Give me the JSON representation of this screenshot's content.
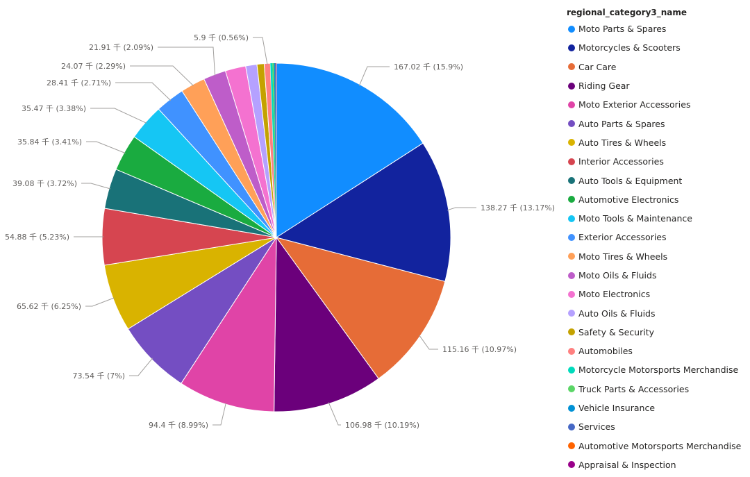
{
  "chart_data": {
    "type": "pie",
    "legend_title": "regional_category3_name",
    "legend_placement": "right",
    "slices": [
      {
        "name": "Moto Parts & Spares",
        "value": 167.02,
        "percent": 15.9,
        "label": "167.02 千 (15.9%)",
        "color": "#118DFF"
      },
      {
        "name": "Motorcycles & Scooters",
        "value": 138.27,
        "percent": 13.17,
        "label": "138.27 千 (13.17%)",
        "color": "#12239E"
      },
      {
        "name": "Car Care",
        "value": 115.16,
        "percent": 10.97,
        "label": "115.16 千 (10.97%)",
        "color": "#E66C37"
      },
      {
        "name": "Riding Gear",
        "value": 106.98,
        "percent": 10.19,
        "label": "106.98 千 (10.19%)",
        "color": "#6B007B"
      },
      {
        "name": "Moto Exterior Accessories",
        "value": 94.4,
        "percent": 8.99,
        "label": "94.4 千 (8.99%)",
        "color": "#E044A7"
      },
      {
        "name": "Auto Parts & Spares",
        "value": 73.54,
        "percent": 7,
        "label": "73.54 千 (7%)",
        "color": "#744EC2"
      },
      {
        "name": "Auto Tires & Wheels",
        "value": 65.62,
        "percent": 6.25,
        "label": "65.62 千 (6.25%)",
        "color": "#D9B300"
      },
      {
        "name": "Interior Accessories",
        "value": 54.88,
        "percent": 5.23,
        "label": "54.88 千 (5.23%)",
        "color": "#D64550"
      },
      {
        "name": "Auto Tools & Equipment",
        "value": 39.08,
        "percent": 3.72,
        "label": "39.08 千 (3.72%)",
        "color": "#197278"
      },
      {
        "name": "Automotive Electronics",
        "value": 35.84,
        "percent": 3.41,
        "label": "35.84 千 (3.41%)",
        "color": "#1AAB40"
      },
      {
        "name": "Moto Tools & Maintenance",
        "value": 35.47,
        "percent": 3.38,
        "label": "35.47 千 (3.38%)",
        "color": "#15C6F4"
      },
      {
        "name": "Exterior Accessories",
        "value": 28.41,
        "percent": 2.71,
        "label": "28.41 千 (2.71%)",
        "color": "#4092FF"
      },
      {
        "name": "Moto Tires & Wheels",
        "value": 24.07,
        "percent": 2.29,
        "label": "24.07 千 (2.29%)",
        "color": "#FFA058"
      },
      {
        "name": "Moto Oils & Fluids",
        "value": 21.91,
        "percent": 2.09,
        "label": "21.91 千 (2.09%)",
        "color": "#BE5DC9"
      },
      {
        "name": "Moto Electronics",
        "value": 20,
        "percent": 1.9,
        "label": "",
        "color": "#F472D0"
      },
      {
        "name": "Auto Oils & Fluids",
        "value": 11,
        "percent": 1.05,
        "label": "",
        "color": "#B5A1FF"
      },
      {
        "name": "Safety & Security",
        "value": 7,
        "percent": 0.67,
        "label": "",
        "color": "#C4A200"
      },
      {
        "name": "Automobiles",
        "value": 5.9,
        "percent": 0.56,
        "label": "5.9 千 (0.56%)",
        "color": "#FF8080"
      },
      {
        "name": "Motorcycle Motorsports Merchandise",
        "value": 2,
        "percent": 0.19,
        "label": "",
        "color": "#00DBBC"
      },
      {
        "name": "Truck Parts & Accessories",
        "value": 1.5,
        "percent": 0.14,
        "label": "",
        "color": "#5BD667"
      },
      {
        "name": "Vehicle Insurance",
        "value": 1,
        "percent": 0.1,
        "label": "",
        "color": "#0091D5"
      },
      {
        "name": "Services",
        "value": 0.6,
        "percent": 0.06,
        "label": "",
        "color": "#4668C5"
      },
      {
        "name": "Automotive Motorsports Merchandise",
        "value": 0.4,
        "percent": 0.04,
        "label": "",
        "color": "#FF6300"
      },
      {
        "name": "Appraisal & Inspection",
        "value": 0.3,
        "percent": 0.03,
        "label": "",
        "color": "#99008A"
      }
    ]
  }
}
